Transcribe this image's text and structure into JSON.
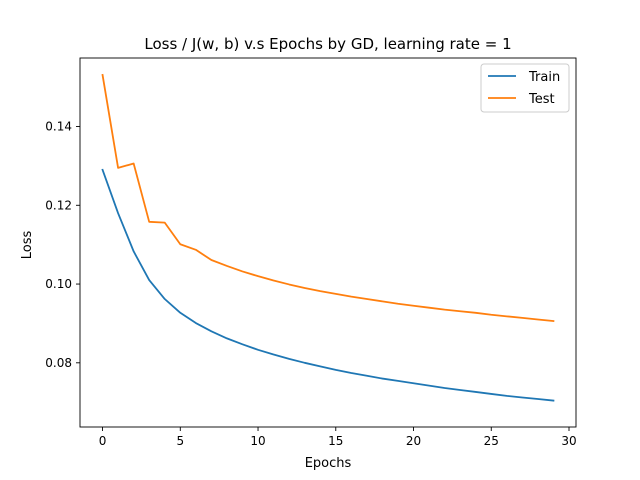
{
  "chart_data": {
    "type": "line",
    "title": "Loss / J(w, b) v.s Epochs by GD, learning rate = 1",
    "xlabel": "Epochs",
    "ylabel": "Loss",
    "xlim": [
      -1.45,
      30.45
    ],
    "ylim": [
      0.0637,
      0.1574
    ],
    "xticks": [
      0,
      5,
      10,
      15,
      20,
      25,
      30
    ],
    "xtick_labels": [
      "0",
      "5",
      "10",
      "15",
      "20",
      "25",
      "30"
    ],
    "yticks": [
      0.08,
      0.1,
      0.12,
      0.14
    ],
    "ytick_labels": [
      "0.08",
      "0.10",
      "0.12",
      "0.14"
    ],
    "grid": false,
    "legend_position": "top-right",
    "x": [
      0,
      1,
      2,
      3,
      4,
      5,
      6,
      7,
      8,
      9,
      10,
      11,
      12,
      13,
      14,
      15,
      16,
      17,
      18,
      19,
      20,
      21,
      22,
      23,
      24,
      25,
      26,
      27,
      28,
      29
    ],
    "series": [
      {
        "name": "Train",
        "color": "#1f77b4",
        "values": [
          0.129,
          0.118,
          0.1083,
          0.101,
          0.0962,
          0.0927,
          0.0901,
          0.088,
          0.0862,
          0.0847,
          0.0833,
          0.0821,
          0.081,
          0.08,
          0.0791,
          0.0782,
          0.0774,
          0.0767,
          0.076,
          0.0754,
          0.0748,
          0.0742,
          0.0736,
          0.0731,
          0.0726,
          0.0721,
          0.0716,
          0.0712,
          0.0708,
          0.0704
        ]
      },
      {
        "name": "Test",
        "color": "#ff7f0e",
        "values": [
          0.1531,
          0.1295,
          0.1306,
          0.1158,
          0.1156,
          0.1101,
          0.1087,
          0.1061,
          0.1046,
          0.1032,
          0.102,
          0.1009,
          0.0999,
          0.099,
          0.0982,
          0.0975,
          0.0968,
          0.0962,
          0.0956,
          0.095,
          0.0945,
          0.094,
          0.0935,
          0.0931,
          0.0927,
          0.0922,
          0.0918,
          0.0914,
          0.091,
          0.0906
        ]
      }
    ]
  }
}
